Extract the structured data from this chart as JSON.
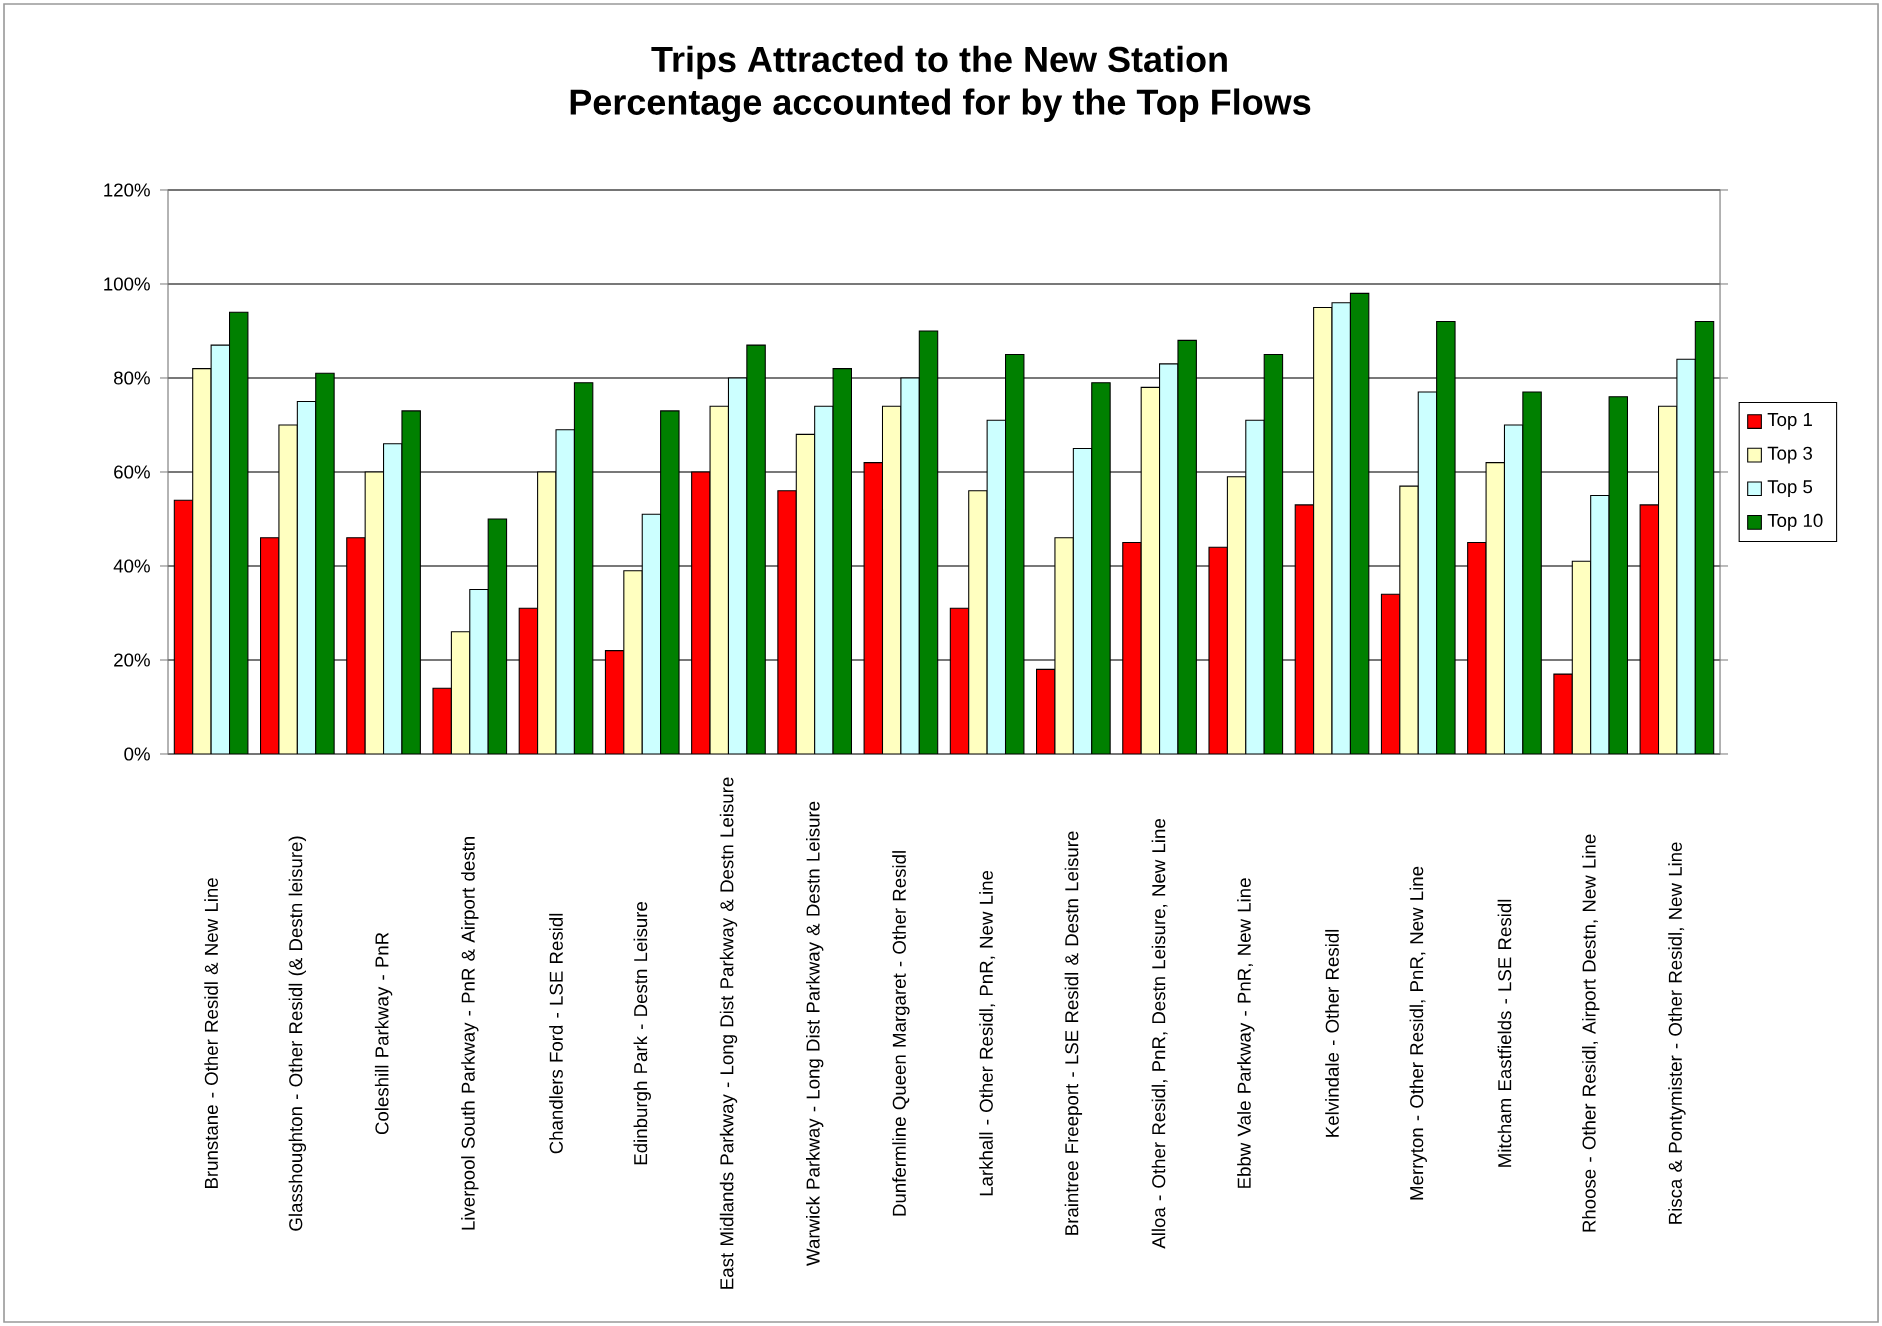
{
  "chart_data": {
    "type": "bar",
    "title": "Trips Attracted to the New Station",
    "subtitle": "Percentage accounted for by the Top Flows",
    "categories": [
      "Brunstane - Other Residl & New Line",
      "Glasshoughton - Other Residl (& Destn leisure)",
      "Coleshill Parkway - PnR",
      "Liverpool South Parkway - PnR & Airport destn",
      "Chandlers Ford - LSE Residl",
      "Edinburgh Park - Destn Leisure",
      "East Midlands Parkway - Long Dist Parkway & Destn Leisure",
      "Warwick Parkway - Long Dist Parkway & Destn Leisure",
      "Dunfermline Queen Margaret - Other Residl",
      "Larkhall - Other Residl, PnR, New Line",
      "Braintree Freeport - LSE Residl & Destn Leisure",
      "Alloa - Other Residl, PnR, Destn Leisure, New Line",
      "Ebbw Vale Parkway - PnR, New Line",
      "Kelvindale - Other Residl",
      "Merryton - Other Residl, PnR, New Line",
      "Mitcham Eastfields - LSE Residl",
      "Rhoose - Other Residl, Airport Destn, New Line",
      "Risca & Pontymister - Other Residl, New Line"
    ],
    "series": [
      {
        "name": "Top 1",
        "color": "#ff0000",
        "values": [
          54,
          46,
          46,
          14,
          31,
          22,
          60,
          56,
          62,
          31,
          18,
          45,
          44,
          53,
          34,
          45,
          17,
          53
        ]
      },
      {
        "name": "Top 3",
        "color": "#ffffc0",
        "values": [
          82,
          70,
          60,
          26,
          60,
          39,
          74,
          68,
          74,
          56,
          46,
          78,
          59,
          95,
          57,
          62,
          41,
          74
        ]
      },
      {
        "name": "Top 5",
        "color": "#ccffff",
        "values": [
          87,
          75,
          66,
          35,
          69,
          51,
          80,
          74,
          80,
          71,
          65,
          83,
          71,
          96,
          77,
          70,
          55,
          84
        ]
      },
      {
        "name": "Top 10",
        "color": "#008000",
        "values": [
          94,
          81,
          73,
          50,
          79,
          73,
          87,
          82,
          90,
          85,
          79,
          88,
          85,
          98,
          92,
          77,
          76,
          92
        ]
      }
    ],
    "ylim": [
      0,
      120
    ],
    "yticks": [
      {
        "value": 0,
        "label": "0%"
      },
      {
        "value": 20,
        "label": "20%"
      },
      {
        "value": 40,
        "label": "40%"
      },
      {
        "value": 60,
        "label": "60%"
      },
      {
        "value": 80,
        "label": "80%"
      },
      {
        "value": 100,
        "label": "100%"
      },
      {
        "value": 120,
        "label": "120%"
      }
    ],
    "grid": "y",
    "legend": "right"
  }
}
